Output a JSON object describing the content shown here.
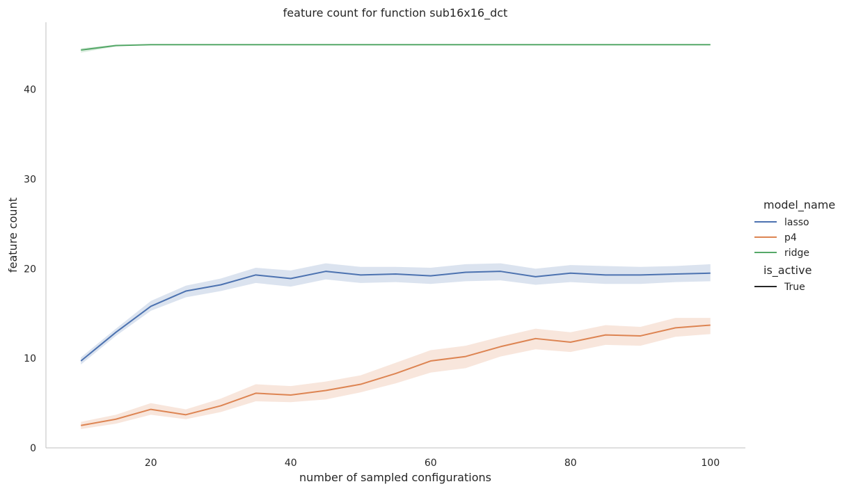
{
  "chart_data": {
    "type": "line",
    "title": "feature count for function sub16x16_dct",
    "xlabel": "number of sampled configurations",
    "ylabel": "feature count",
    "xlim": [
      5,
      105
    ],
    "ylim": [
      0,
      47.5
    ],
    "xticks": [
      20,
      40,
      60,
      80,
      100
    ],
    "yticks": [
      0,
      10,
      20,
      30,
      40
    ],
    "grid": false,
    "legend_placement": "right",
    "legend": {
      "hue_title": "model_name",
      "style_title": "is_active",
      "style_entries": [
        "True"
      ]
    },
    "x": [
      10,
      15,
      20,
      25,
      30,
      35,
      40,
      45,
      50,
      55,
      60,
      65,
      70,
      75,
      80,
      85,
      90,
      95,
      100
    ],
    "series": [
      {
        "name": "lasso",
        "color": "#4c72b0",
        "values": [
          9.7,
          12.9,
          15.8,
          17.5,
          18.2,
          19.3,
          18.9,
          19.7,
          19.3,
          19.4,
          19.2,
          19.6,
          19.7,
          19.1,
          19.5,
          19.3,
          19.3,
          19.4,
          19.5
        ],
        "lower": [
          9.3,
          12.5,
          15.3,
          16.8,
          17.5,
          18.4,
          18.0,
          18.8,
          18.4,
          18.5,
          18.3,
          18.6,
          18.7,
          18.2,
          18.5,
          18.3,
          18.3,
          18.5,
          18.6
        ],
        "upper": [
          10.1,
          13.3,
          16.4,
          18.1,
          18.9,
          20.1,
          19.8,
          20.6,
          20.2,
          20.2,
          20.1,
          20.5,
          20.6,
          20.0,
          20.4,
          20.3,
          20.2,
          20.3,
          20.5
        ]
      },
      {
        "name": "p4",
        "color": "#dd8452",
        "values": [
          2.5,
          3.2,
          4.3,
          3.7,
          4.7,
          6.1,
          5.9,
          6.4,
          7.1,
          8.3,
          9.7,
          10.2,
          11.3,
          12.2,
          11.8,
          12.6,
          12.5,
          13.4,
          13.7
        ],
        "lower": [
          2.1,
          2.7,
          3.7,
          3.2,
          4.0,
          5.2,
          5.1,
          5.4,
          6.2,
          7.2,
          8.4,
          8.9,
          10.2,
          11.0,
          10.7,
          11.5,
          11.4,
          12.4,
          12.7
        ],
        "upper": [
          2.9,
          3.7,
          5.0,
          4.3,
          5.5,
          7.1,
          6.9,
          7.4,
          8.1,
          9.5,
          10.9,
          11.4,
          12.4,
          13.3,
          12.9,
          13.7,
          13.5,
          14.5,
          14.5
        ]
      },
      {
        "name": "ridge",
        "color": "#55a868",
        "values": [
          44.4,
          44.9,
          45.0,
          45.0,
          45.0,
          45.0,
          45.0,
          45.0,
          45.0,
          45.0,
          45.0,
          45.0,
          45.0,
          45.0,
          45.0,
          45.0,
          45.0,
          45.0,
          45.0
        ],
        "lower": [
          44.1,
          44.8,
          45.0,
          45.0,
          45.0,
          45.0,
          45.0,
          45.0,
          45.0,
          45.0,
          45.0,
          45.0,
          45.0,
          45.0,
          45.0,
          45.0,
          45.0,
          45.0,
          45.0
        ],
        "upper": [
          44.6,
          45.0,
          45.0,
          45.0,
          45.0,
          45.0,
          45.0,
          45.0,
          45.0,
          45.0,
          45.0,
          45.0,
          45.0,
          45.0,
          45.0,
          45.0,
          45.0,
          45.0,
          45.0
        ]
      }
    ]
  }
}
